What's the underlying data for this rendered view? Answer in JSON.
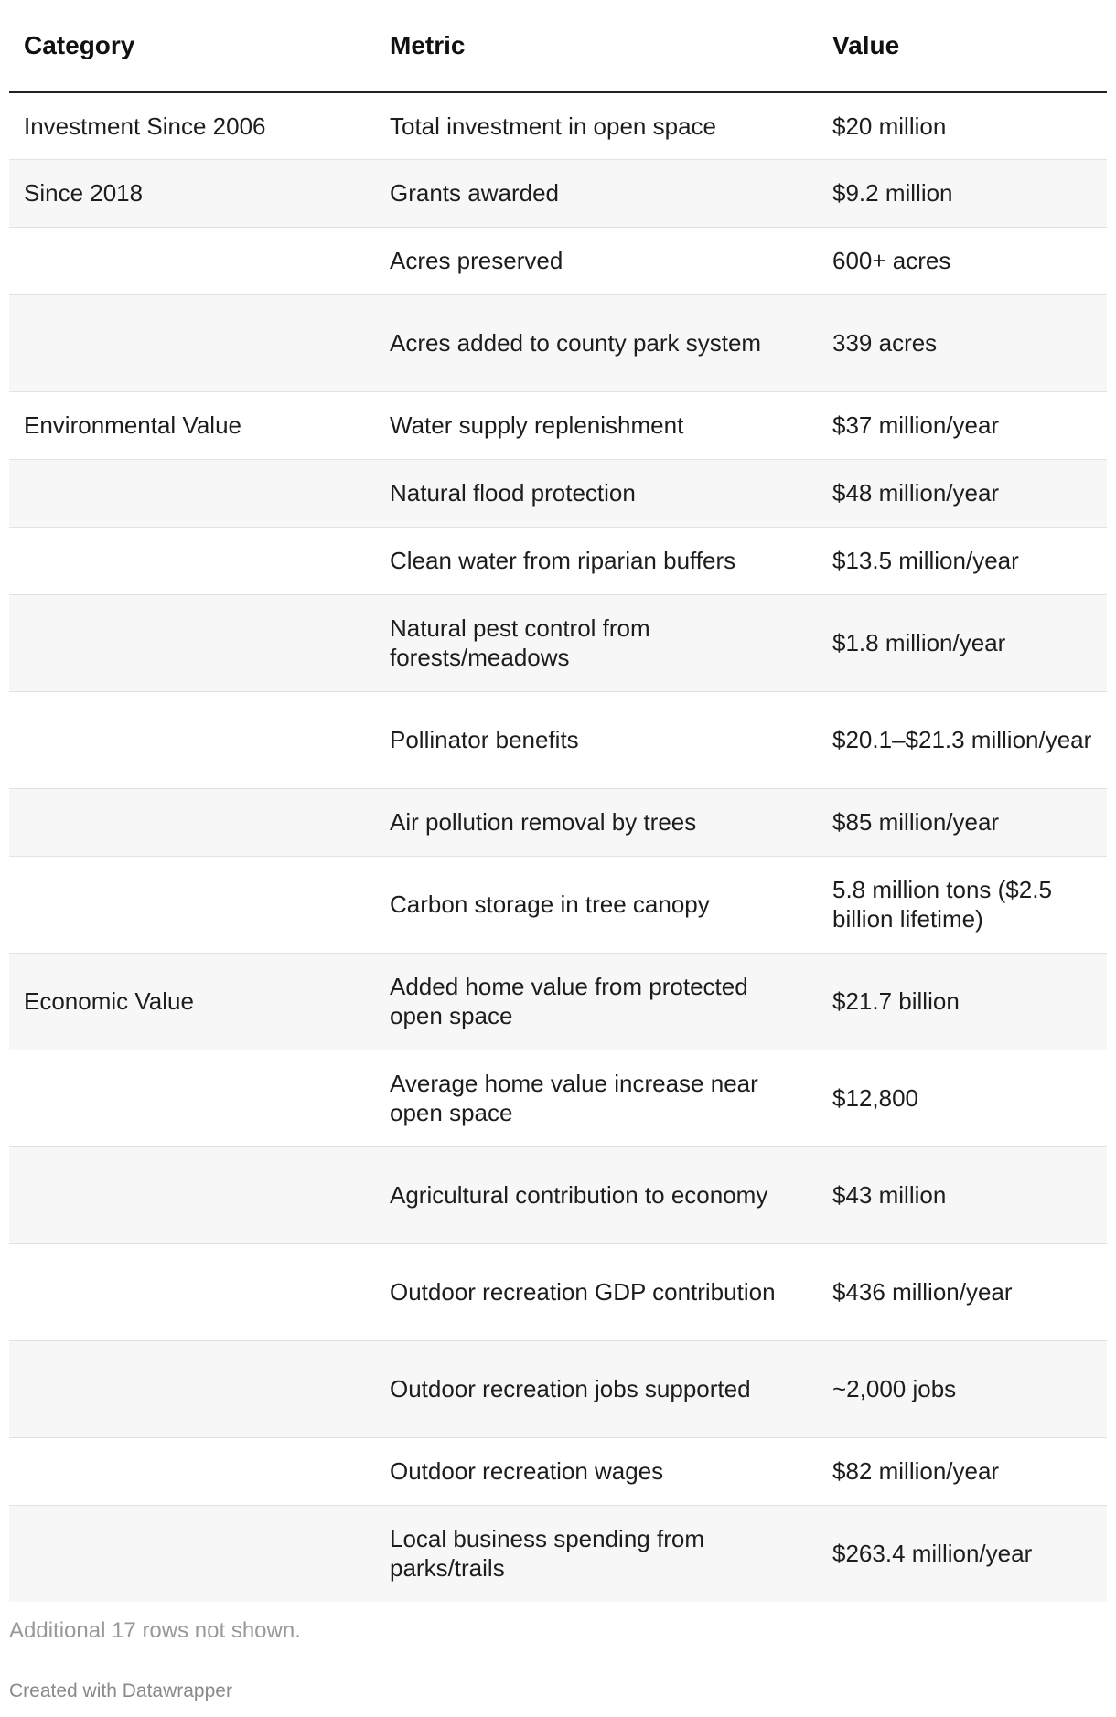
{
  "table": {
    "headers": [
      "Category",
      "Metric",
      "Value"
    ],
    "rows": [
      {
        "category": "Investment Since 2006",
        "metric": "Total investment in open space",
        "value": "$20 million"
      },
      {
        "category": "Since 2018",
        "metric": "Grants awarded",
        "value": "$9.2 million"
      },
      {
        "category": "",
        "metric": "Acres preserved",
        "value": "600+ acres"
      },
      {
        "category": "",
        "metric": "Acres added to county park system",
        "value": "339 acres"
      },
      {
        "category": "Environmental Value",
        "metric": "Water supply replenishment",
        "value": "$37 million/year"
      },
      {
        "category": "",
        "metric": "Natural flood protection",
        "value": "$48 million/year"
      },
      {
        "category": "",
        "metric": "Clean water from riparian buffers",
        "value": "$13.5 million/year"
      },
      {
        "category": "",
        "metric": "Natural pest control from forests/meadows",
        "value": "$1.8 million/year"
      },
      {
        "category": "",
        "metric": "Pollinator benefits",
        "value": "$20.1–$21.3 million/year"
      },
      {
        "category": "",
        "metric": "Air pollution removal by trees",
        "value": "$85 million/year"
      },
      {
        "category": "",
        "metric": "Carbon storage in tree canopy",
        "value": "5.8 million tons ($2.5 billion lifetime)"
      },
      {
        "category": "Economic Value",
        "metric": "Added home value from protected open space",
        "value": "$21.7 billion"
      },
      {
        "category": "",
        "metric": "Average home value increase near open space",
        "value": "$12,800"
      },
      {
        "category": "",
        "metric": "Agricultural contribution to economy",
        "value": "$43 million"
      },
      {
        "category": "",
        "metric": "Outdoor recreation GDP contribution",
        "value": "$436 million/year"
      },
      {
        "category": "",
        "metric": "Outdoor recreation jobs supported",
        "value": "~2,000 jobs"
      },
      {
        "category": "",
        "metric": "Outdoor recreation wages",
        "value": "$82 million/year"
      },
      {
        "category": "",
        "metric": "Local business spending from parks/trails",
        "value": "$263.4 million/year"
      }
    ]
  },
  "footer": {
    "note": "Additional 17 rows not shown.",
    "credit": "Created with Datawrapper"
  }
}
